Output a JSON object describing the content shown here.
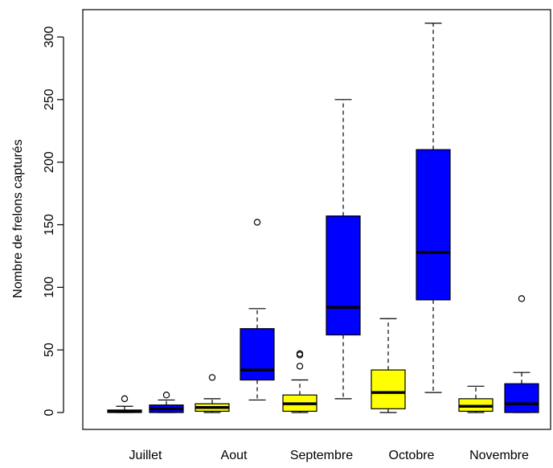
{
  "chart_data": {
    "type": "boxplot",
    "ylabel": "Nombre de frelons capturés",
    "xlabel": "",
    "ylim": [
      0,
      320
    ],
    "yticks": [
      0,
      50,
      100,
      150,
      200,
      250,
      300
    ],
    "categories": [
      "Juillet",
      "Aout",
      "Septembre",
      "Octobre",
      "Novembre"
    ],
    "colors": {
      "series_a": "#ffff00",
      "series_b": "#0000ff",
      "outline": "#000000"
    },
    "boxes": [
      {
        "category": "Juillet",
        "fill": "#ffff00",
        "min": 0,
        "q1": 0,
        "median": 1,
        "q3": 2,
        "max": 5,
        "outliers": [
          11
        ]
      },
      {
        "category": "Juillet",
        "fill": "#0000ff",
        "min": 0,
        "q1": 0,
        "median": 3,
        "q3": 6,
        "max": 10,
        "outliers": [
          14
        ]
      },
      {
        "category": "Aout",
        "fill": "#ffff00",
        "min": 0,
        "q1": 1,
        "median": 4,
        "q3": 7,
        "max": 11,
        "outliers": [
          28
        ]
      },
      {
        "category": "Aout",
        "fill": "#0000ff",
        "min": 10,
        "q1": 26,
        "median": 34,
        "q3": 67,
        "max": 83,
        "outliers": [
          152
        ]
      },
      {
        "category": "Septembre",
        "fill": "#ffff00",
        "min": 0,
        "q1": 1,
        "median": 7,
        "q3": 14,
        "max": 26,
        "outliers": [
          37,
          46,
          47
        ]
      },
      {
        "category": "Septembre",
        "fill": "#0000ff",
        "min": 11,
        "q1": 62,
        "median": 84,
        "q3": 157,
        "max": 250,
        "outliers": []
      },
      {
        "category": "Octobre",
        "fill": "#ffff00",
        "min": 0,
        "q1": 3,
        "median": 16,
        "q3": 34,
        "max": 75,
        "outliers": []
      },
      {
        "category": "Octobre",
        "fill": "#0000ff",
        "min": 16,
        "q1": 90,
        "median": 128,
        "q3": 210,
        "max": 311,
        "outliers": []
      },
      {
        "category": "Novembre",
        "fill": "#ffff00",
        "min": 0,
        "q1": 1,
        "median": 5,
        "q3": 11,
        "max": 21,
        "outliers": []
      },
      {
        "category": "Novembre",
        "fill": "#0000ff",
        "min": 0,
        "q1": 0,
        "median": 7,
        "q3": 23,
        "max": 32,
        "outliers": [
          91
        ]
      }
    ]
  }
}
